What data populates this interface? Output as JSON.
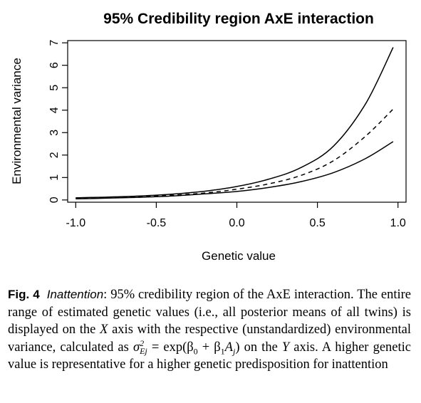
{
  "chart_data": {
    "type": "line",
    "title": "95% Credibility region AxE interaction",
    "xlabel": "Genetic value",
    "ylabel": "Environmental variance",
    "xlim": [
      -1.05,
      1.05
    ],
    "ylim": [
      -0.1,
      7.1
    ],
    "xticks": [
      -1.0,
      -0.5,
      0.0,
      0.5,
      1.0
    ],
    "xtick_labels": [
      "-1.0",
      "-0.5",
      "0.0",
      "0.5",
      "1.0"
    ],
    "yticks": [
      0,
      1,
      2,
      3,
      4,
      5,
      6,
      7
    ],
    "ytick_labels": [
      "0",
      "1",
      "2",
      "3",
      "4",
      "5",
      "6",
      "7"
    ],
    "x": [
      -1.0,
      -0.8,
      -0.6,
      -0.4,
      -0.2,
      0.0,
      0.2,
      0.4,
      0.6,
      0.8,
      0.97
    ],
    "series": [
      {
        "style": "solid",
        "values": [
          0.1,
          0.13,
          0.18,
          0.26,
          0.39,
          0.6,
          0.93,
          1.45,
          2.4,
          4.3,
          6.8
        ]
      },
      {
        "style": "dashed",
        "values": [
          0.07,
          0.1,
          0.15,
          0.21,
          0.31,
          0.48,
          0.72,
          1.1,
          1.75,
          2.85,
          4.05
        ]
      },
      {
        "style": "solid",
        "values": [
          0.05,
          0.08,
          0.12,
          0.18,
          0.27,
          0.38,
          0.56,
          0.82,
          1.22,
          1.85,
          2.6
        ]
      }
    ],
    "grid": false,
    "legend": "none"
  },
  "caption": {
    "label": "Fig. 4",
    "lead": "Inattention",
    "text1": ": 95% credibility region of the AxE interaction. The entire range of estimated genetic values (i.e., all posterior means of all twins) is displayed on the ",
    "xvar": "X",
    "text2": " axis with the respective (unstandardized) environmental variance, calculated as ",
    "formula_sigma": "σ",
    "formula_sub": "Ej",
    "formula_sup": "2",
    "formula_rhs": " = exp(β",
    "b0": "0",
    "plus": " + β",
    "b1": "1",
    "a": "A",
    "aj": "j",
    "close": ")",
    "text3": " on the ",
    "yvar": "Y",
    "text4": " axis. A higher genetic value is representative for a higher genetic predisposition for inattention"
  }
}
